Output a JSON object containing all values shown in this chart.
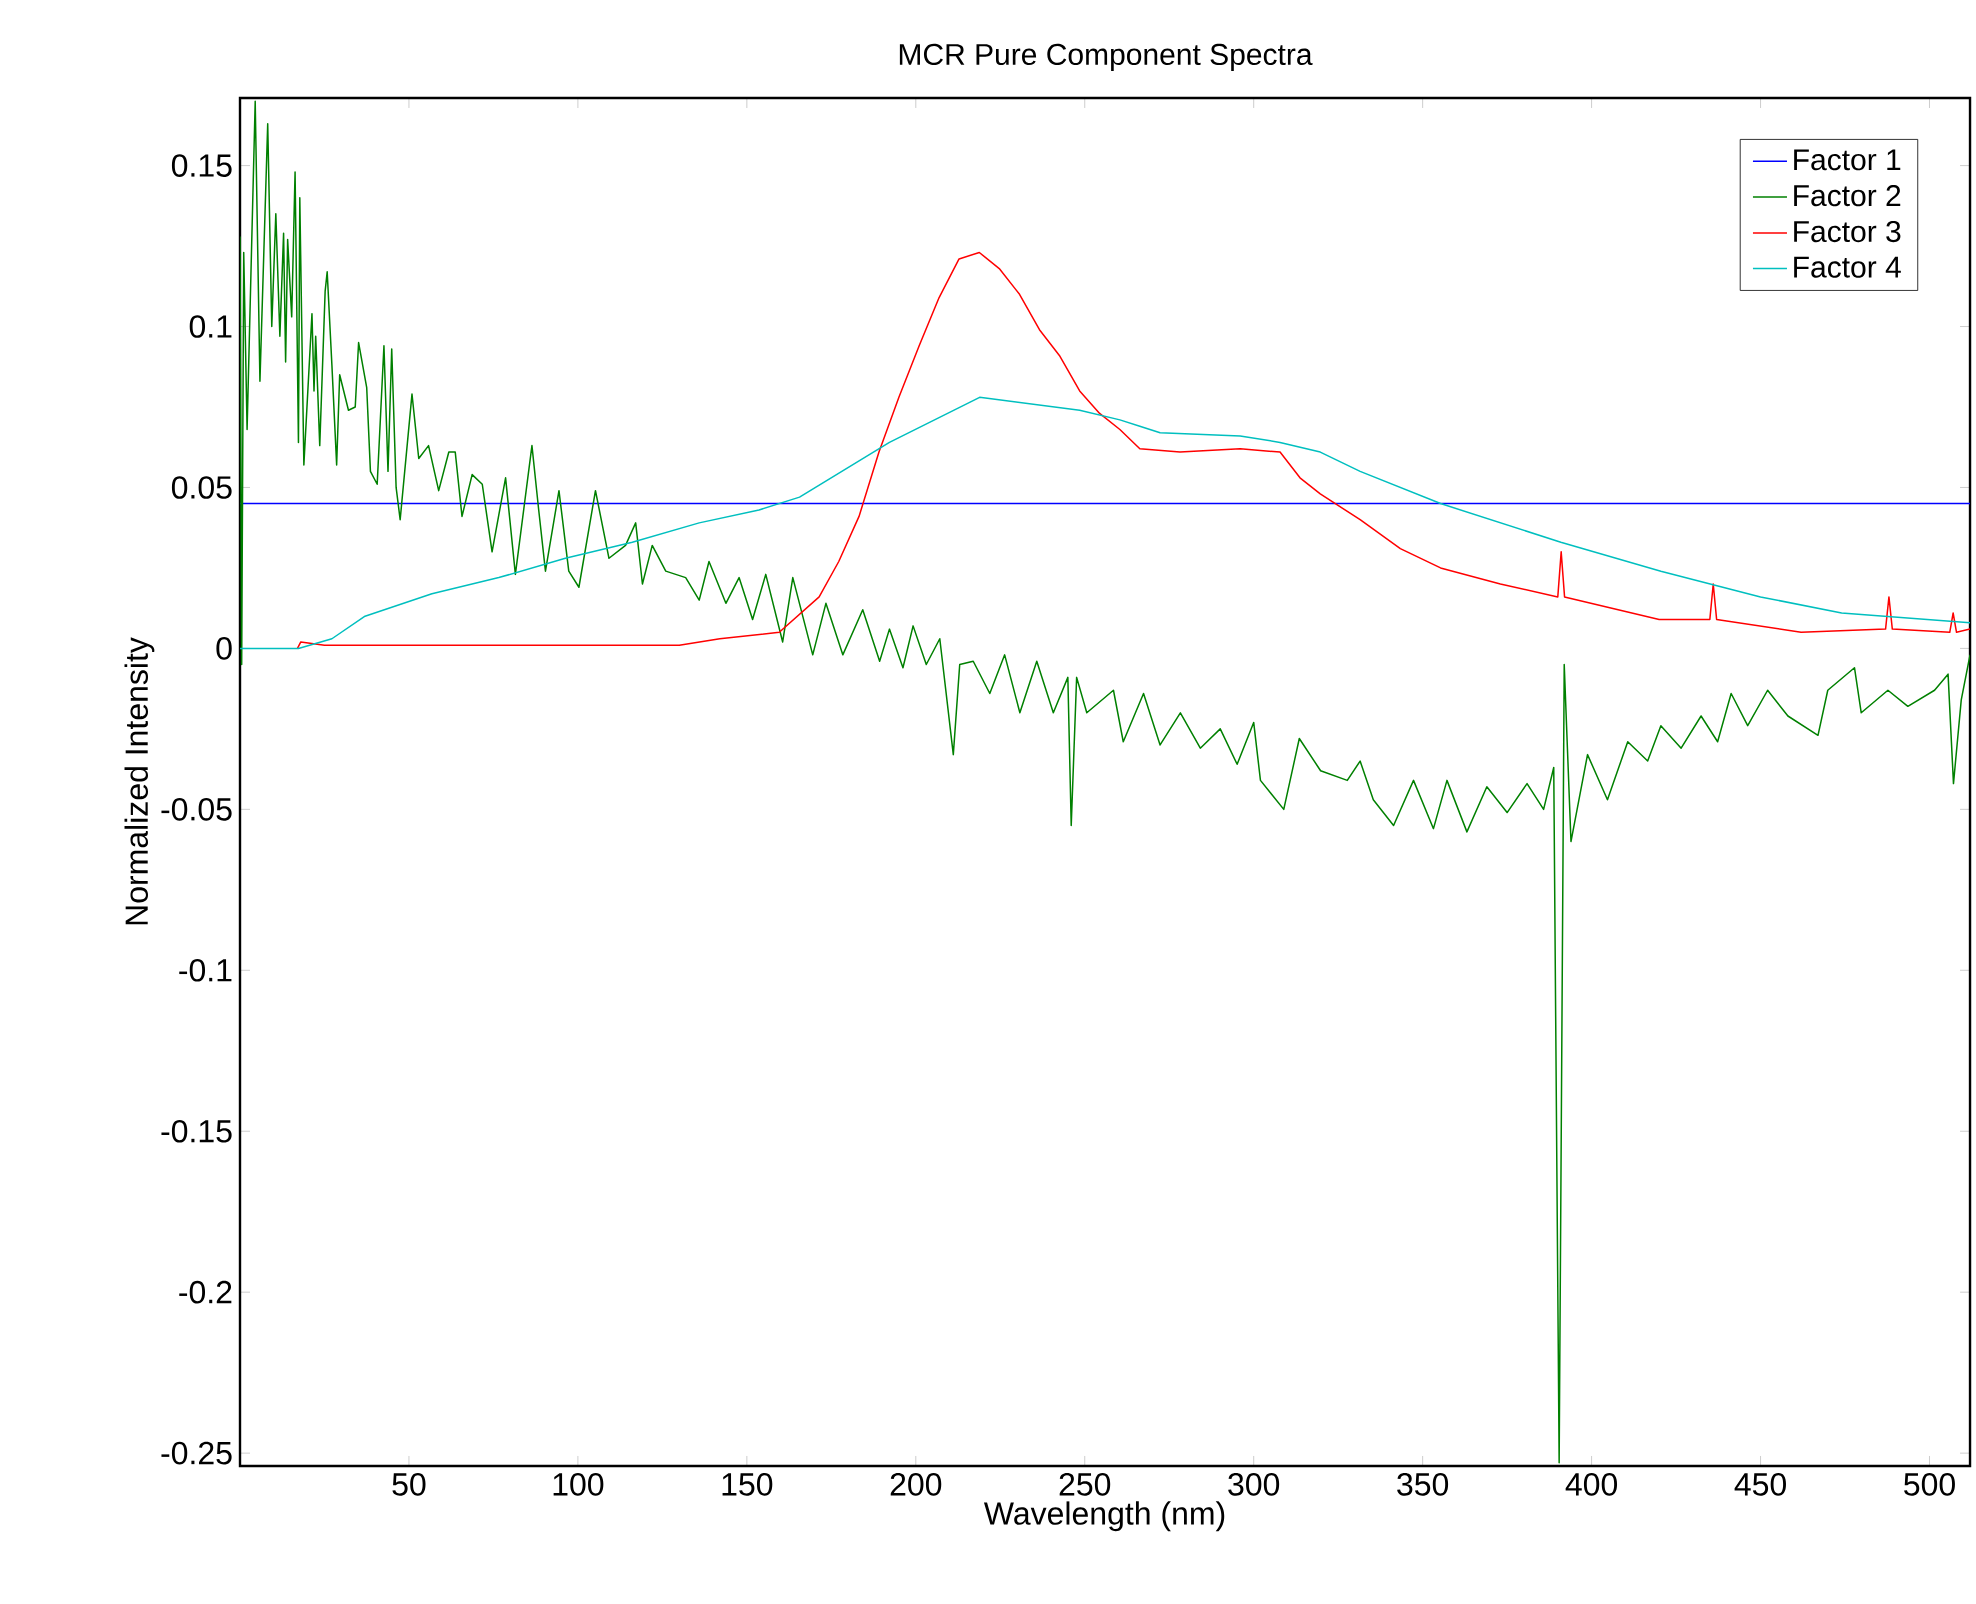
{
  "chart_data": {
    "type": "line",
    "title": "MCR Pure Component Spectra",
    "xlabel": "Wavelength (nm)",
    "ylabel": "Normalized Intensity",
    "xlim": [
      0,
      512
    ],
    "ylim": [
      -0.254,
      0.171
    ],
    "xticks": [
      50,
      100,
      150,
      200,
      250,
      300,
      350,
      400,
      450,
      500
    ],
    "yticks": [
      -0.25,
      -0.2,
      -0.15,
      -0.1,
      -0.05,
      0,
      0.05,
      0.1,
      0.15
    ],
    "legend": "top right",
    "marker": "none",
    "line_style": "solid",
    "series": [
      {
        "name": "Factor 1",
        "color": "#0000ff",
        "x": [
          0,
          512
        ],
        "values": [
          0.045,
          0.045
        ]
      },
      {
        "name": "Factor 2",
        "color": "#008000",
        "x": [
          0,
          0.5,
          1.1,
          2.1,
          4.5,
          5.9,
          8.2,
          9.4,
          10.6,
          11.8,
          12.9,
          13.5,
          14.1,
          15.3,
          16.3,
          17.3,
          17.7,
          18.9,
          21.3,
          21.9,
          22.4,
          23.6,
          25.2,
          25.8,
          27.2,
          28.6,
          29.5,
          32.1,
          34.1,
          35.1,
          37.5,
          38.6,
          40.6,
          42.6,
          43.8,
          44.9,
          46.2,
          47.4,
          50.9,
          52.9,
          55.8,
          58.8,
          61.8,
          63.7,
          65.7,
          68.7,
          71.7,
          74.6,
          78.6,
          81.5,
          86.4,
          88.4,
          90.4,
          94.4,
          97.3,
          100.3,
          105.2,
          109.2,
          114.1,
          117.1,
          119.1,
          122.0,
          126.0,
          131.9,
          135.9,
          138.8,
          143.8,
          147.7,
          151.7,
          155.6,
          160.6,
          163.6,
          169.5,
          173.4,
          178.4,
          184.3,
          189.3,
          192.2,
          196.2,
          199.2,
          203.1,
          207.1,
          211.1,
          213.0,
          217.0,
          221.9,
          226.3,
          230.8,
          235.8,
          240.7,
          245.0,
          246.0,
          247.6,
          250.6,
          258.5,
          261.4,
          267.4,
          272.3,
          278.3,
          284.2,
          290.1,
          295.1,
          300.0,
          302.0,
          308.9,
          313.5,
          319.8,
          327.7,
          331.5,
          335.4,
          341.4,
          347.3,
          353.2,
          357.2,
          363.1,
          369.0,
          375.0,
          380.9,
          385.8,
          388.8,
          390.4,
          391.9,
          393.9,
          398.8,
          404.7,
          410.7,
          416.6,
          420.5,
          426.5,
          432.4,
          437.3,
          441.3,
          446.2,
          452.1,
          458.1,
          467.0,
          469.9,
          477.8,
          479.8,
          487.7,
          493.6,
          501.5,
          505.5,
          507.1,
          509.4,
          512
        ],
        "values": [
          0.128,
          -0.005,
          0.123,
          0.068,
          0.17,
          0.083,
          0.163,
          0.1,
          0.135,
          0.097,
          0.129,
          0.089,
          0.127,
          0.103,
          0.148,
          0.064,
          0.14,
          0.057,
          0.104,
          0.08,
          0.097,
          0.063,
          0.111,
          0.117,
          0.088,
          0.057,
          0.085,
          0.074,
          0.075,
          0.095,
          0.081,
          0.055,
          0.051,
          0.094,
          0.055,
          0.093,
          0.05,
          0.04,
          0.079,
          0.059,
          0.063,
          0.049,
          0.061,
          0.061,
          0.041,
          0.054,
          0.051,
          0.03,
          0.053,
          0.023,
          0.063,
          0.043,
          0.024,
          0.049,
          0.024,
          0.019,
          0.049,
          0.028,
          0.032,
          0.039,
          0.02,
          0.032,
          0.024,
          0.022,
          0.015,
          0.027,
          0.014,
          0.022,
          0.009,
          0.023,
          0.002,
          0.022,
          -0.002,
          0.014,
          -0.002,
          0.012,
          -0.004,
          0.006,
          -0.006,
          0.007,
          -0.005,
          0.003,
          -0.033,
          -0.005,
          -0.004,
          -0.014,
          -0.002,
          -0.02,
          -0.004,
          -0.02,
          -0.009,
          -0.055,
          -0.009,
          -0.02,
          -0.013,
          -0.029,
          -0.014,
          -0.03,
          -0.02,
          -0.031,
          -0.025,
          -0.036,
          -0.023,
          -0.041,
          -0.05,
          -0.028,
          -0.038,
          -0.041,
          -0.035,
          -0.047,
          -0.055,
          -0.041,
          -0.056,
          -0.041,
          -0.057,
          -0.043,
          -0.051,
          -0.042,
          -0.05,
          -0.037,
          -0.253,
          -0.005,
          -0.06,
          -0.033,
          -0.047,
          -0.029,
          -0.035,
          -0.024,
          -0.031,
          -0.021,
          -0.029,
          -0.014,
          -0.024,
          -0.013,
          -0.021,
          -0.027,
          -0.013,
          -0.006,
          -0.02,
          -0.013,
          -0.018,
          -0.013,
          -0.008,
          -0.042,
          -0.016,
          -0.002
        ]
      },
      {
        "name": "Factor 3",
        "color": "#ff0000",
        "x": [
          17,
          18,
          25,
          60,
          100,
          130,
          142,
          159.6,
          171.4,
          177.2,
          183.2,
          189.1,
          195,
          201,
          206.9,
          212.8,
          218.8,
          224.7,
          230.7,
          236.6,
          242.5,
          248.5,
          254.4,
          260.4,
          266.3,
          278.2,
          296,
          307.8,
          313.7,
          319.7,
          331.5,
          343.4,
          355.3,
          373,
          390,
          391,
          392,
          420,
          435,
          436,
          437,
          462,
          487,
          488,
          489,
          506,
          507,
          508,
          512
        ],
        "values": [
          0,
          0.002,
          0.001,
          0.001,
          0.001,
          0.001,
          0.003,
          0.005,
          0.016,
          0.027,
          0.041,
          0.061,
          0.078,
          0.094,
          0.109,
          0.121,
          0.123,
          0.118,
          0.11,
          0.099,
          0.091,
          0.08,
          0.073,
          0.068,
          0.062,
          0.061,
          0.062,
          0.061,
          0.053,
          0.048,
          0.04,
          0.031,
          0.025,
          0.02,
          0.016,
          0.03,
          0.016,
          0.009,
          0.009,
          0.02,
          0.009,
          0.005,
          0.006,
          0.016,
          0.006,
          0.005,
          0.011,
          0.005,
          0.006
        ]
      },
      {
        "name": "Factor 4",
        "color": "#00bfbf",
        "x": [
          0,
          17.3,
          27.2,
          37.0,
          56.8,
          76.6,
          96.3,
          116.1,
          135.9,
          153.6,
          165.6,
          192.2,
          218.9,
          248.5,
          260.4,
          266.3,
          272.3,
          296,
          307.8,
          319.7,
          331.5,
          355.3,
          390.9,
          420.5,
          450,
          474,
          512
        ],
        "values": [
          0,
          0,
          0.003,
          0.01,
          0.017,
          0.022,
          0.028,
          0.033,
          0.039,
          0.043,
          0.047,
          0.064,
          0.078,
          0.074,
          0.071,
          0.069,
          0.067,
          0.066,
          0.064,
          0.061,
          0.055,
          0.045,
          0.033,
          0.024,
          0.016,
          0.011,
          0.008
        ]
      }
    ]
  }
}
